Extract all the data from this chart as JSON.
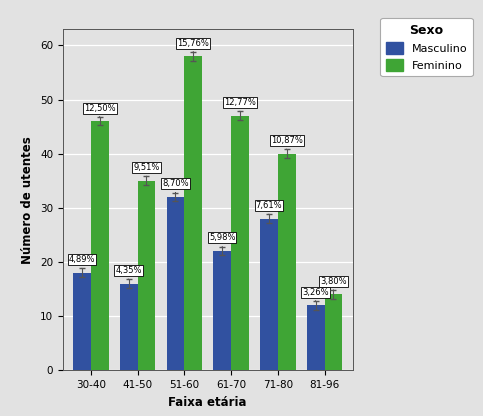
{
  "categories": [
    "30-40",
    "41-50",
    "51-60",
    "61-70",
    "71-80",
    "81-96"
  ],
  "masculino_values": [
    18,
    16,
    32,
    22,
    28,
    12
  ],
  "feminino_values": [
    46,
    35,
    58,
    47,
    40,
    14
  ],
  "masculino_labels": [
    "4,89%",
    "4,35%",
    "8,70%",
    "5,98%",
    "7,61%",
    "3,26%"
  ],
  "feminino_labels": [
    "12,50%",
    "9,51%",
    "15,76%",
    "12,77%",
    "10,87%",
    "3,80%"
  ],
  "masculino_color": "#3151a0",
  "feminino_color": "#3fa535",
  "xlabel": "Faixa etária",
  "ylabel": "Número de utentes",
  "ylim": [
    0,
    63
  ],
  "yticks": [
    0,
    10,
    20,
    30,
    40,
    50,
    60
  ],
  "legend_title": "Sexo",
  "legend_labels": [
    "Masculino",
    "Feminino"
  ],
  "bg_color": "#e2e2e2",
  "bar_width": 0.38,
  "label_fontsize": 6.0,
  "axis_fontsize": 8.5,
  "tick_fontsize": 7.5,
  "legend_fontsize": 8.0,
  "legend_title_fontsize": 9.0
}
